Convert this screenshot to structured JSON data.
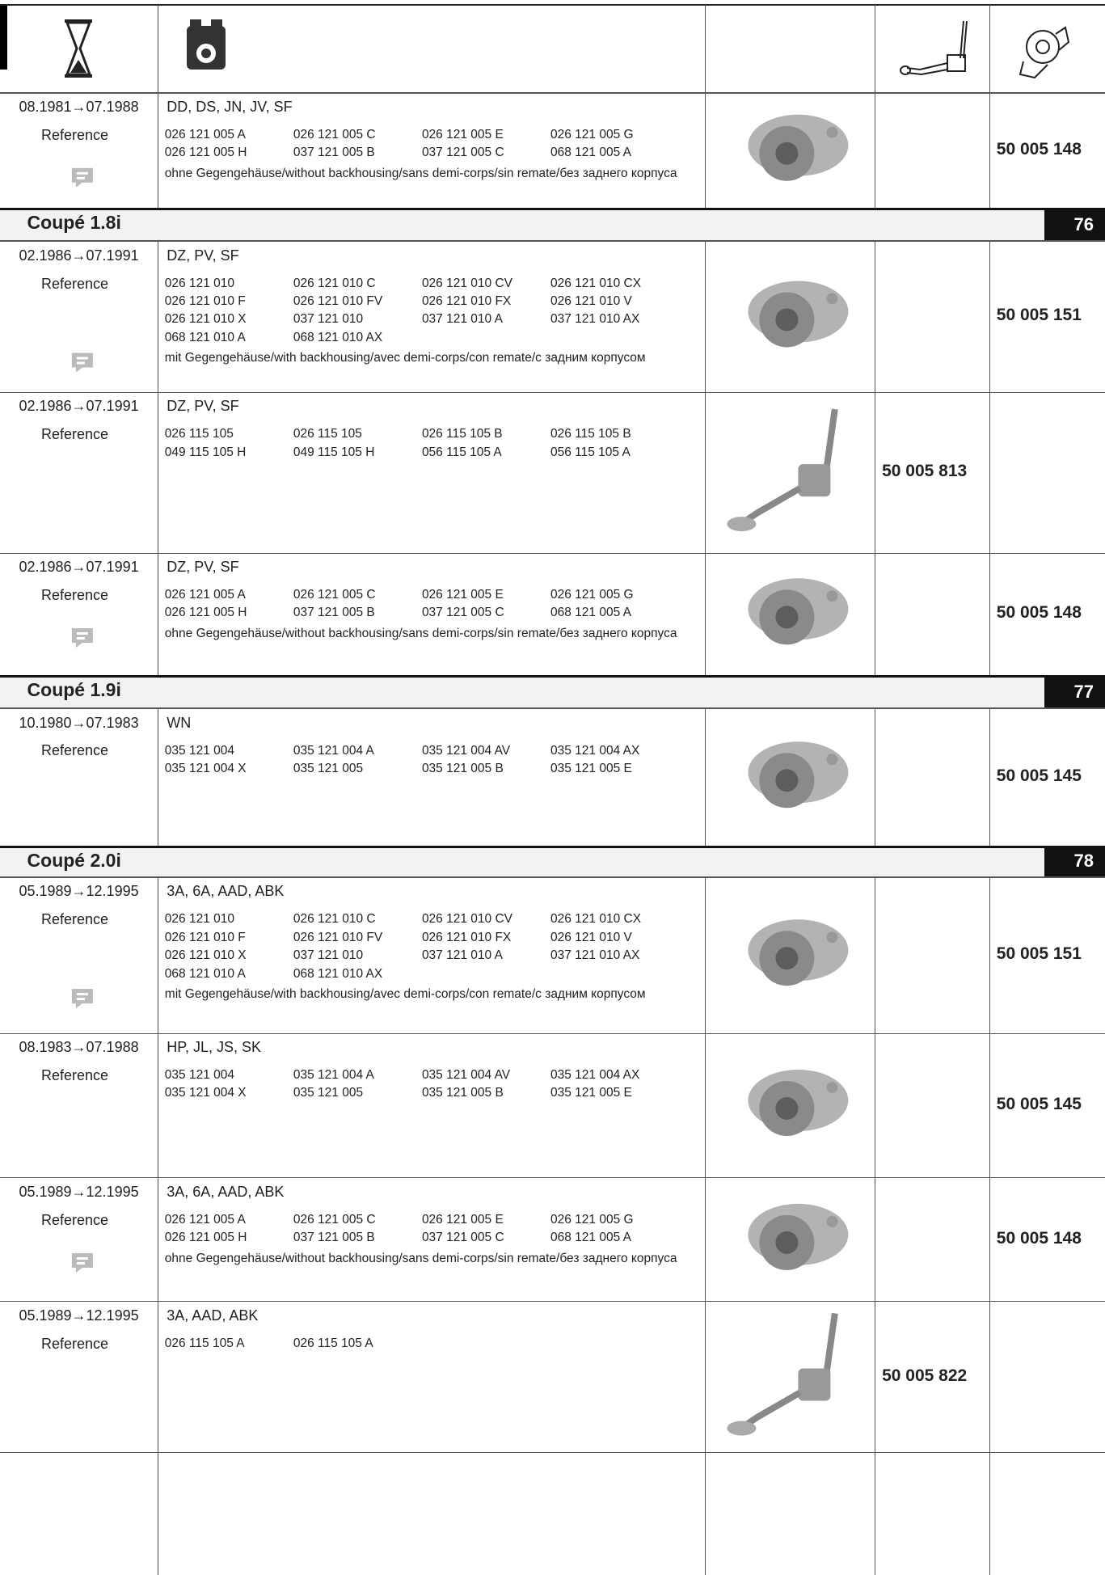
{
  "first_entry": {
    "dates": "08.1981→07.1988",
    "engines": "DD, DS, JN, JV, SF",
    "label": "Reference",
    "codes": [
      "026 121 005 A",
      "026 121 005 C",
      "026 121 005 E",
      "026 121 005 G",
      "026 121 005 H",
      "037 121 005 B",
      "037 121 005 C",
      "068 121 005 A"
    ],
    "note": "ohne Gegengehäuse/without backhousing/sans demi-corps/sin remate/без заднего корпуса",
    "water_pump": "50 005 148"
  },
  "sections": [
    {
      "title": "Coupé 1.8i",
      "number": "76",
      "entries": [
        {
          "dates": "02.1986→07.1991",
          "engines": "DZ, PV, SF",
          "label": "Reference",
          "codes": [
            "026 121 010",
            "026 121 010 C",
            "026 121 010 CV",
            "026 121 010 CX",
            "026 121 010 F",
            "026 121 010 FV",
            "026 121 010 FX",
            "026 121 010 V",
            "026 121 010 X",
            "037 121 010",
            "037 121 010 A",
            "037 121 010 AX",
            "068 121 010 A",
            "068 121 010 AX"
          ],
          "note": "mit Gegengehäuse/with backhousing/avec demi-corps/con remate/с задним корпусом",
          "water_pump": "50 005 151"
        },
        {
          "dates": "02.1986→07.1991",
          "engines": "DZ, PV, SF",
          "label": "Reference",
          "codes": [
            "026 115 105",
            "026 115 105",
            "026 115 105 B",
            "026 115 105 B",
            "049 115 105 H",
            "049 115 105 H",
            "056 115 105 A",
            "056 115 105 A"
          ],
          "oil_pump": "50 005 813"
        },
        {
          "dates": "02.1986→07.1991",
          "engines": "DZ, PV, SF",
          "label": "Reference",
          "codes": [
            "026 121 005 A",
            "026 121 005 C",
            "026 121 005 E",
            "026 121 005 G",
            "026 121 005 H",
            "037 121 005 B",
            "037 121 005 C",
            "068 121 005 A"
          ],
          "note": "ohne Gegengehäuse/without backhousing/sans demi-corps/sin remate/без заднего корпуса",
          "water_pump": "50 005 148"
        }
      ]
    },
    {
      "title": "Coupé 1.9i",
      "number": "77",
      "entries": [
        {
          "dates": "10.1980→07.1983",
          "engines": "WN",
          "label": "Reference",
          "codes": [
            "035 121 004",
            "035 121 004 A",
            "035 121 004 AV",
            "035 121 004 AX",
            "035 121 004 X",
            "035 121 005",
            "035 121 005 B",
            "035 121 005 E"
          ],
          "water_pump": "50 005 145"
        }
      ]
    },
    {
      "title": "Coupé 2.0i",
      "number": "78",
      "entries": [
        {
          "dates": "05.1989→12.1995",
          "engines": "3A, 6A, AAD, ABK",
          "label": "Reference",
          "codes": [
            "026 121 010",
            "026 121 010 C",
            "026 121 010 CV",
            "026 121 010 CX",
            "026 121 010 F",
            "026 121 010 FV",
            "026 121 010 FX",
            "026 121 010 V",
            "026 121 010 X",
            "037 121 010",
            "037 121 010 A",
            "037 121 010 AX",
            "068 121 010 A",
            "068 121 010 AX"
          ],
          "note": "mit Gegengehäuse/with backhousing/avec demi-corps/con remate/с задним корпусом",
          "water_pump": "50 005 151"
        },
        {
          "dates": "08.1983→07.1988",
          "engines": "HP, JL, JS, SK",
          "label": "Reference",
          "codes": [
            "035 121 004",
            "035 121 004 A",
            "035 121 004 AV",
            "035 121 004 AX",
            "035 121 004 X",
            "035 121 005",
            "035 121 005 B",
            "035 121 005 E"
          ],
          "water_pump": "50 005 145"
        },
        {
          "dates": "05.1989→12.1995",
          "engines": "3A, 6A, AAD, ABK",
          "label": "Reference",
          "codes": [
            "026 121 005 A",
            "026 121 005 C",
            "026 121 005 E",
            "026 121 005 G",
            "026 121 005 H",
            "037 121 005 B",
            "037 121 005 C",
            "068 121 005 A"
          ],
          "note": "ohne Gegengehäuse/without backhousing/sans demi-corps/sin remate/без заднего корпуса",
          "water_pump": "50 005 148"
        },
        {
          "dates": "05.1989→12.1995",
          "engines": "3A, AAD, ABK",
          "label": "Reference",
          "codes": [
            "026 115 105 A",
            "026 115 105 A"
          ],
          "oil_pump": "50 005 822"
        }
      ]
    }
  ]
}
